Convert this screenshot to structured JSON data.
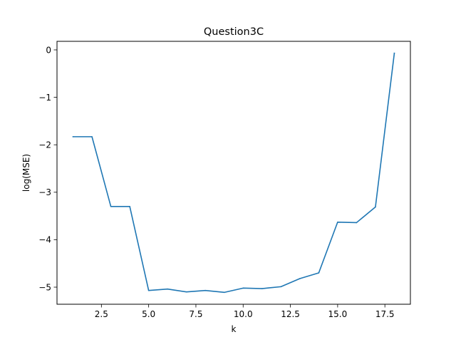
{
  "chart_data": {
    "type": "line",
    "title": "Question3C",
    "xlabel": "k",
    "ylabel": "log(MSE)",
    "xlim": [
      0.15,
      18.85
    ],
    "ylim": [
      -5.36,
      0.18
    ],
    "grid": false,
    "legend": "none",
    "x_ticks": [
      2.5,
      5.0,
      7.5,
      10.0,
      12.5,
      15.0,
      17.5
    ],
    "x_tick_labels": [
      "2.5",
      "5.0",
      "7.5",
      "10.0",
      "12.5",
      "15.0",
      "17.5"
    ],
    "y_ticks": [
      0,
      -1,
      -2,
      -3,
      -4,
      -5
    ],
    "y_tick_labels": [
      "0",
      "−1",
      "−2",
      "−3",
      "−4",
      "−5"
    ],
    "series": [
      {
        "color": "#1f77b4",
        "x": [
          1,
          2,
          3,
          4,
          5,
          6,
          7,
          8,
          9,
          10,
          11,
          12,
          13,
          14,
          15,
          16,
          17,
          18
        ],
        "y": [
          -1.83,
          -1.83,
          -3.3,
          -3.3,
          -5.07,
          -5.04,
          -5.1,
          -5.07,
          -5.11,
          -5.02,
          -5.03,
          -4.99,
          -4.82,
          -4.7,
          -3.63,
          -3.64,
          -3.31,
          -0.07
        ]
      }
    ]
  }
}
